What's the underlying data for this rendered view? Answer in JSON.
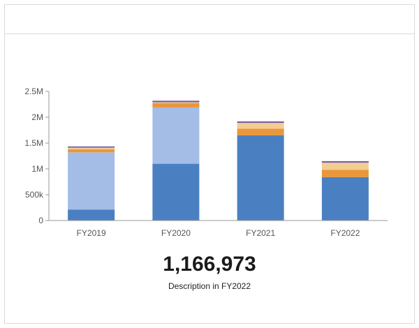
{
  "card": {
    "title": ""
  },
  "kpi": {
    "value": "1,166,973",
    "description": "Description in FY2022"
  },
  "chart_data": {
    "type": "bar",
    "stacked": true,
    "title": "",
    "xlabel": "",
    "ylabel": "",
    "ylim": [
      0,
      2500000
    ],
    "yticks": [
      0,
      500000,
      1000000,
      1500000,
      2000000,
      2500000
    ],
    "ytick_labels": [
      "0",
      "500k",
      "1M",
      "1.5M",
      "2M",
      "2.5M"
    ],
    "grid": false,
    "legend": "none",
    "categories": [
      "FY2019",
      "FY2020",
      "FY2021",
      "FY2022"
    ],
    "series": [
      {
        "color": "#4a80c2",
        "values": [
          210000,
          1100000,
          1650000,
          840000
        ]
      },
      {
        "color": "#a3bde6",
        "values": [
          1110000,
          1090000,
          0,
          0
        ]
      },
      {
        "color": "#e8973a",
        "values": [
          60000,
          80000,
          130000,
          140000
        ]
      },
      {
        "color": "#f3cd91",
        "values": [
          30000,
          20000,
          110000,
          140000
        ]
      },
      {
        "color": "#7b5ea3",
        "values": [
          25000,
          30000,
          30000,
          30000
        ]
      }
    ]
  }
}
